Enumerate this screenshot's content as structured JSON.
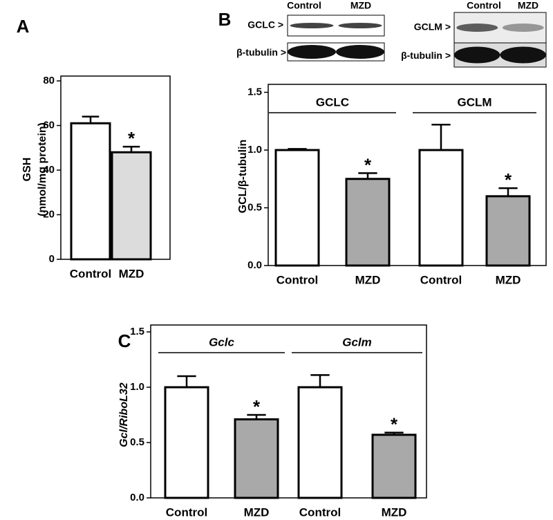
{
  "chart_data": [
    {
      "type": "bar",
      "panel": "A",
      "ylabel": [
        "GSH",
        "(nmol/mg protein)"
      ],
      "categories": [
        "Control",
        "MZD"
      ],
      "values": [
        61,
        48
      ],
      "errors": [
        3,
        2.5
      ],
      "colors": [
        "#ffffff",
        "#dcdcdc"
      ],
      "ylim": [
        0,
        80
      ],
      "yticks": [
        0,
        20,
        40,
        60,
        80
      ],
      "annotations": [
        {
          "index": 1,
          "text": "*"
        }
      ]
    },
    {
      "type": "bar",
      "panel": "B",
      "ylabel": [
        "GCL/β-tubulin"
      ],
      "groups": [
        "GCLC",
        "GCLM"
      ],
      "categories": [
        "Control",
        "MZD",
        "Control",
        "MZD"
      ],
      "values": [
        1.0,
        0.75,
        1.0,
        0.6
      ],
      "errors": [
        0.01,
        0.05,
        0.22,
        0.07
      ],
      "colors": [
        "#ffffff",
        "#a9a9a9",
        "#ffffff",
        "#a9a9a9"
      ],
      "ylim": [
        0,
        1.5
      ],
      "yticks": [
        {
          "value": 0,
          "label": "0.0"
        },
        {
          "value": 0.5,
          "label": "0.5"
        },
        {
          "value": 1,
          "label": "1.0"
        },
        {
          "value": 1.5,
          "label": "1.5"
        }
      ],
      "annotations": [
        {
          "index": 1,
          "text": "*"
        },
        {
          "index": 3,
          "text": "*"
        }
      ]
    },
    {
      "type": "bar",
      "panel": "C",
      "ylabel": [
        "Gcl/RiboL32"
      ],
      "italic": true,
      "groups": [
        "Gclc",
        "Gclm"
      ],
      "categories": [
        "Control",
        "MZD",
        "Control",
        "MZD"
      ],
      "values": [
        1.0,
        0.71,
        1.0,
        0.57
      ],
      "errors": [
        0.1,
        0.04,
        0.11,
        0.02
      ],
      "colors": [
        "#ffffff",
        "#a9a9a9",
        "#ffffff",
        "#a9a9a9"
      ],
      "ylim": [
        0,
        1.5
      ],
      "yticks": [
        {
          "value": 0,
          "label": "0.0"
        },
        {
          "value": 0.5,
          "label": "0.5"
        },
        {
          "value": 1,
          "label": "1.0"
        },
        {
          "value": 1.5,
          "label": "1.5"
        }
      ],
      "annotations": [
        {
          "index": 1,
          "text": "*"
        },
        {
          "index": 3,
          "text": "*"
        }
      ]
    }
  ],
  "blots": [
    {
      "lanes": [
        "Control",
        "MZD"
      ],
      "protein": "GCLC >",
      "loading": "β-tubulin >"
    },
    {
      "lanes": [
        "Control",
        "MZD"
      ],
      "protein": "GCLM >",
      "loading": "β-tubulin >"
    }
  ]
}
